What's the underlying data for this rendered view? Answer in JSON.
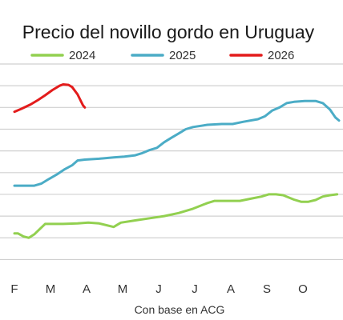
{
  "chart_data": {
    "type": "line",
    "title": "Precio del novillo gordo en Uruguay",
    "note": "Con base en ACG",
    "legend_position": "top",
    "grid": true,
    "x_tick_labels": [
      "F",
      "M",
      "A",
      "M",
      "J",
      "J",
      "A",
      "S",
      "O"
    ],
    "series": [
      {
        "name": "2024",
        "color": "#92d050",
        "values": [
          [
            0.25,
            3.85
          ],
          [
            0.35,
            3.85
          ],
          [
            0.5,
            3.78
          ],
          [
            0.65,
            3.75
          ],
          [
            0.8,
            3.83
          ],
          [
            0.95,
            3.95
          ],
          [
            1.1,
            4.07
          ],
          [
            1.3,
            4.07
          ],
          [
            1.6,
            4.07
          ],
          [
            2.0,
            4.08
          ],
          [
            2.3,
            4.1
          ],
          [
            2.6,
            4.08
          ],
          [
            3.0,
            4.0
          ],
          [
            3.2,
            4.1
          ],
          [
            3.6,
            4.15
          ],
          [
            4.0,
            4.2
          ],
          [
            4.4,
            4.25
          ],
          [
            4.8,
            4.32
          ],
          [
            5.2,
            4.42
          ],
          [
            5.6,
            4.55
          ],
          [
            5.8,
            4.6
          ],
          [
            6.2,
            4.6
          ],
          [
            6.5,
            4.6
          ],
          [
            6.8,
            4.65
          ],
          [
            7.1,
            4.7
          ],
          [
            7.3,
            4.75
          ],
          [
            7.5,
            4.75
          ],
          [
            7.7,
            4.73
          ],
          [
            8.0,
            4.63
          ],
          [
            8.2,
            4.58
          ],
          [
            8.4,
            4.58
          ],
          [
            8.6,
            4.62
          ],
          [
            8.8,
            4.7
          ],
          [
            9.0,
            4.73
          ],
          [
            9.2,
            4.75
          ]
        ]
      },
      {
        "name": "2025",
        "color": "#4bacc6",
        "values": [
          [
            0.25,
            4.95
          ],
          [
            0.5,
            4.95
          ],
          [
            0.8,
            4.95
          ],
          [
            1.0,
            5.0
          ],
          [
            1.2,
            5.1
          ],
          [
            1.45,
            5.22
          ],
          [
            1.65,
            5.33
          ],
          [
            1.85,
            5.42
          ],
          [
            2.0,
            5.53
          ],
          [
            2.2,
            5.55
          ],
          [
            2.6,
            5.57
          ],
          [
            3.0,
            5.6
          ],
          [
            3.3,
            5.62
          ],
          [
            3.6,
            5.65
          ],
          [
            3.8,
            5.7
          ],
          [
            4.0,
            5.77
          ],
          [
            4.2,
            5.82
          ],
          [
            4.4,
            5.95
          ],
          [
            4.6,
            6.05
          ],
          [
            4.8,
            6.15
          ],
          [
            5.0,
            6.25
          ],
          [
            5.2,
            6.3
          ],
          [
            5.6,
            6.35
          ],
          [
            6.0,
            6.37
          ],
          [
            6.3,
            6.37
          ],
          [
            6.6,
            6.42
          ],
          [
            7.0,
            6.48
          ],
          [
            7.2,
            6.55
          ],
          [
            7.4,
            6.68
          ],
          [
            7.6,
            6.75
          ],
          [
            7.8,
            6.85
          ],
          [
            8.0,
            6.88
          ],
          [
            8.3,
            6.9
          ],
          [
            8.6,
            6.9
          ],
          [
            8.8,
            6.85
          ],
          [
            9.0,
            6.7
          ],
          [
            9.15,
            6.52
          ],
          [
            9.25,
            6.45
          ]
        ]
      },
      {
        "name": "2026",
        "color": "#e31c1c",
        "values": [
          [
            0.25,
            6.65
          ],
          [
            0.45,
            6.72
          ],
          [
            0.7,
            6.82
          ],
          [
            0.9,
            6.92
          ],
          [
            1.1,
            7.03
          ],
          [
            1.3,
            7.15
          ],
          [
            1.5,
            7.25
          ],
          [
            1.6,
            7.28
          ],
          [
            1.75,
            7.27
          ],
          [
            1.85,
            7.22
          ],
          [
            2.0,
            7.05
          ],
          [
            2.15,
            6.8
          ],
          [
            2.2,
            6.75
          ]
        ]
      }
    ],
    "ylim": [
      3.0,
      7.75
    ],
    "xlim": [
      0.25,
      9.25
    ],
    "y_grid_values": [
      3.25,
      3.75,
      4.25,
      4.75,
      5.25,
      5.75,
      6.25,
      6.75,
      7.25,
      7.75
    ]
  }
}
